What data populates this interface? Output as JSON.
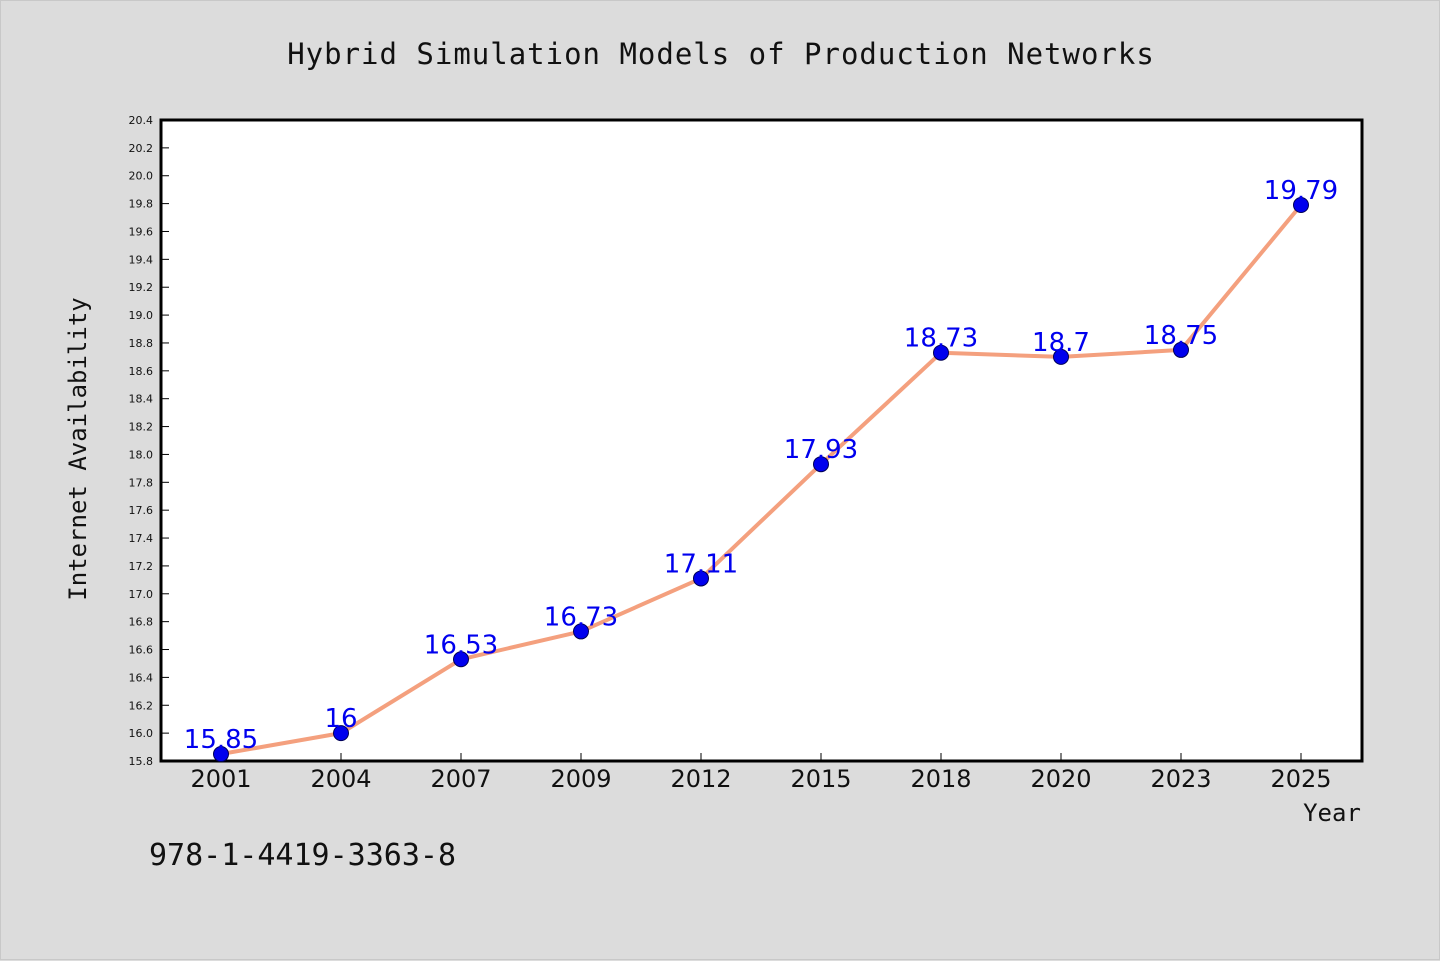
{
  "chart_data": {
    "type": "line",
    "title": "Hybrid Simulation Models of Production Networks",
    "xlabel": "Year",
    "ylabel": "Internet Availability",
    "categories": [
      "2001",
      "2004",
      "2007",
      "2009",
      "2012",
      "2015",
      "2018",
      "2020",
      "2023",
      "2025"
    ],
    "series": [
      {
        "values": [
          15.85,
          16,
          16.53,
          16.73,
          17.11,
          17.93,
          18.73,
          18.7,
          18.75,
          19.79
        ],
        "labels": [
          "15.85",
          "16",
          "16.53",
          "16.73",
          "17.11",
          "17.93",
          "18.73",
          "18.7",
          "18.75",
          "19.79"
        ]
      }
    ],
    "ylim": [
      15.8,
      20.4
    ],
    "yticks": [
      "15.8",
      "16.0",
      "16.2",
      "16.4",
      "16.6",
      "16.8",
      "17.0",
      "17.2",
      "17.4",
      "17.6",
      "17.8",
      "18.0",
      "18.2",
      "18.4",
      "18.6",
      "18.8",
      "19.0",
      "19.2",
      "19.4",
      "19.6",
      "19.8",
      "20.0",
      "20.2",
      "20.4"
    ],
    "grid": false,
    "colors": {
      "line": "#f4a07e",
      "marker": "#0000ee",
      "data_label": "#0000ee",
      "background": "#dcdcdc",
      "plot_area": "#ffffff"
    }
  },
  "footer": {
    "isbn": "978-1-4419-3363-8"
  }
}
